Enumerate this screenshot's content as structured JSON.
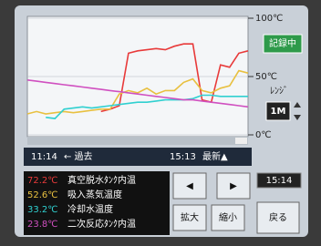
{
  "chart_data": {
    "type": "line",
    "categories": [
      "11:14",
      null,
      null,
      null,
      null,
      null,
      null,
      null,
      null,
      null,
      null,
      null,
      null,
      null,
      null,
      null,
      null,
      null,
      null,
      null,
      null,
      null,
      null,
      null,
      "15:13"
    ],
    "series": [
      {
        "name": "真空脱水ﾀﾝｸ内温",
        "latest_label": "72.2℃",
        "color": "#e83a3a",
        "values": [
          null,
          null,
          null,
          null,
          null,
          null,
          null,
          null,
          20,
          22,
          25,
          70,
          72,
          73,
          74,
          73,
          76,
          78,
          78,
          30,
          28,
          60,
          58,
          70,
          72
        ]
      },
      {
        "name": "吸入蒸気温度",
        "latest_label": "52.6℃",
        "color": "#e8c040",
        "values": [
          18,
          20,
          18,
          19,
          20,
          19,
          20,
          21,
          22,
          22,
          35,
          38,
          36,
          40,
          35,
          38,
          38,
          45,
          48,
          38,
          36,
          40,
          42,
          55,
          53
        ]
      },
      {
        "name": "冷却水温度",
        "latest_label": "33.2℃",
        "color": "#30d0d0",
        "values": [
          null,
          null,
          15,
          14,
          22,
          23,
          24,
          23,
          24,
          25,
          26,
          27,
          28,
          28,
          29,
          30,
          30,
          30,
          31,
          34,
          34,
          33,
          33,
          33,
          33
        ]
      },
      {
        "name": "二次反応ﾀﾝｸ内温",
        "latest_label": "23.8℃",
        "color": "#d050c0",
        "values": [
          47,
          46,
          45,
          44,
          43,
          42,
          41,
          40,
          39,
          38,
          37,
          36,
          35,
          34,
          33,
          32,
          31,
          30,
          30,
          29,
          28,
          27,
          26,
          25,
          24
        ]
      }
    ],
    "ylim": [
      0,
      100
    ],
    "yticks": [
      {
        "value": 0,
        "label": "0℃"
      },
      {
        "value": 50,
        "label": "50℃"
      },
      {
        "value": 100,
        "label": "100℃"
      }
    ],
    "grid": true
  },
  "ui": {
    "status": "記録中",
    "range_label": "ﾚﾝｼﾞ",
    "range": "1M",
    "past": "← 過去",
    "latest": "最新▲",
    "clock": "15:14",
    "buttons": {
      "left": "◀",
      "right": "▶",
      "zoom_in": "拡大",
      "zoom_out": "縮小",
      "back": "戻る"
    }
  }
}
